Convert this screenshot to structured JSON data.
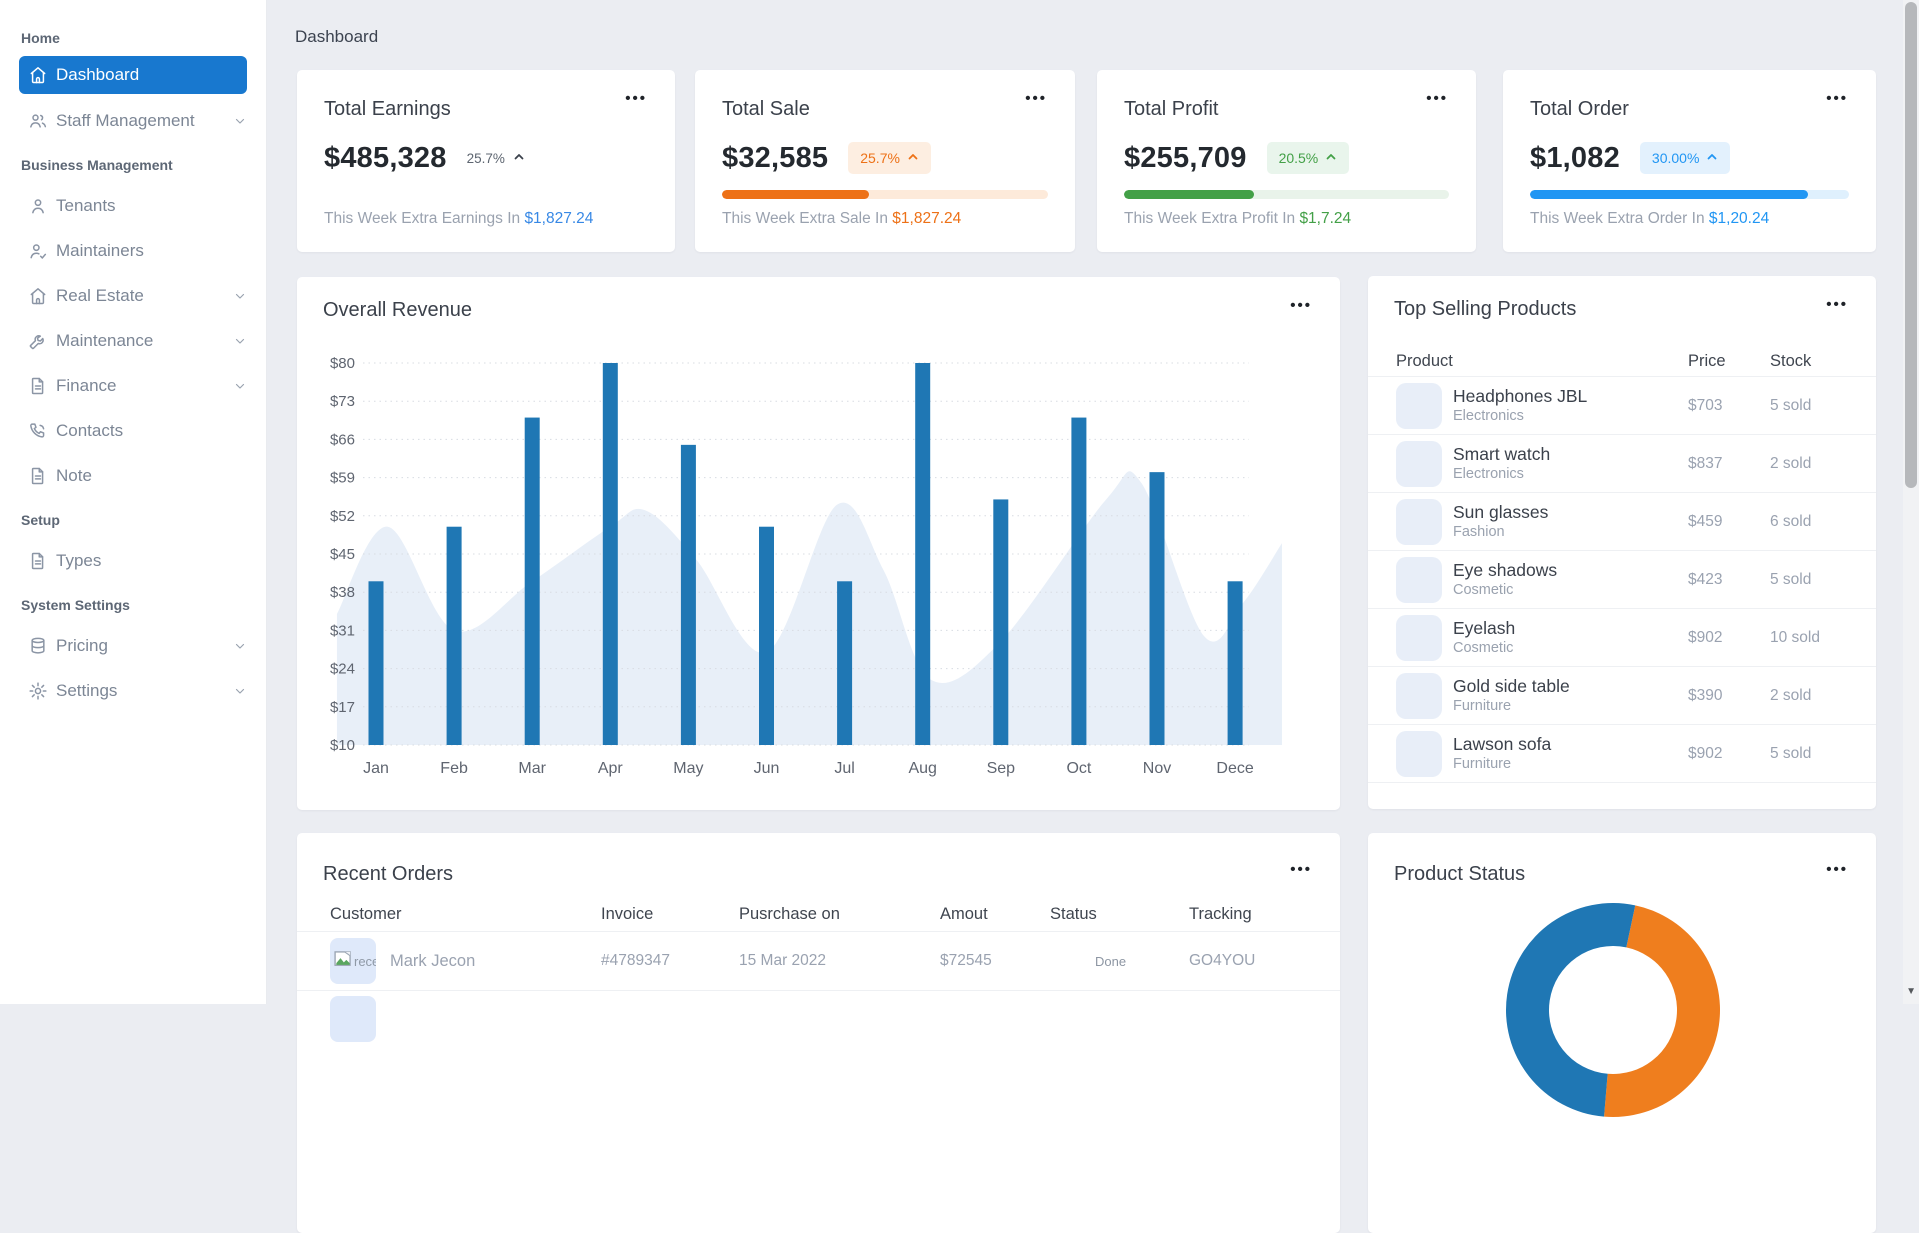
{
  "page": {
    "title": "Dashboard"
  },
  "ui": {
    "dots": "•••"
  },
  "sidebar": {
    "sections": [
      {
        "label": "Home",
        "items": [
          {
            "label": "Dashboard",
            "icon": "home-icon",
            "active": true
          },
          {
            "label": "Staff Management",
            "icon": "users-icon",
            "chevron": true
          }
        ]
      },
      {
        "label": "Business Management",
        "items": [
          {
            "label": "Tenants",
            "icon": "user-icon"
          },
          {
            "label": "Maintainers",
            "icon": "user-check-icon"
          },
          {
            "label": "Real Estate",
            "icon": "home-icon",
            "chevron": true
          },
          {
            "label": "Maintenance",
            "icon": "wrench-icon",
            "chevron": true
          },
          {
            "label": "Finance",
            "icon": "file-icon",
            "chevron": true
          },
          {
            "label": "Contacts",
            "icon": "phone-icon"
          },
          {
            "label": "Note",
            "icon": "file-icon"
          }
        ]
      },
      {
        "label": "Setup",
        "items": [
          {
            "label": "Types",
            "icon": "file-icon"
          }
        ]
      },
      {
        "label": "System Settings",
        "items": [
          {
            "label": "Pricing",
            "icon": "database-icon",
            "chevron": true
          },
          {
            "label": "Settings",
            "icon": "gear-icon",
            "chevron": true
          }
        ]
      }
    ]
  },
  "stat_cards": [
    {
      "title": "Total Earnings",
      "value": "$485,328",
      "percent": "25.7%",
      "style": "plain",
      "accent": "#3788e5",
      "note_prefix": "This Week Extra Earnings In ",
      "note_amount": "$1,827.24"
    },
    {
      "title": "Total Sale",
      "value": "$32,585",
      "percent": "25.7%",
      "style": "badge",
      "accent": "#ed7117",
      "badge_bg": "#fdeee1",
      "progress": 45,
      "track": "#fdeada",
      "note_prefix": "This Week Extra Sale In ",
      "note_amount": "$1,827.24"
    },
    {
      "title": "Total Profit",
      "value": "$255,709",
      "percent": "20.5%",
      "style": "badge",
      "accent": "#43a047",
      "badge_bg": "#e9f5ec",
      "progress": 40,
      "track": "#e9f3ea",
      "note_prefix": "This Week Extra Profit In ",
      "note_amount": "$1,7.24"
    },
    {
      "title": "Total Order",
      "value": "$1,082",
      "percent": "30.00%",
      "style": "badge",
      "accent": "#2196f3",
      "badge_bg": "#e3f1fd",
      "progress": 87,
      "track": "#dff0fd",
      "note_prefix": "This Week Extra Order In ",
      "note_amount": "$1,20.24"
    }
  ],
  "chart_data": [
    {
      "type": "bar",
      "title": "Overall Revenue",
      "categories": [
        "Jan",
        "Feb",
        "Mar",
        "Apr",
        "May",
        "Jun",
        "Jul",
        "Aug",
        "Sep",
        "Oct",
        "Nov",
        "Dece"
      ],
      "series": [
        {
          "name": "monthly-revenue",
          "kind": "bar",
          "color": "#1f77b4",
          "values": [
            40,
            50,
            70,
            80,
            65,
            50,
            40,
            80,
            55,
            70,
            60,
            40
          ]
        },
        {
          "name": "background-trend",
          "kind": "area",
          "color": "#e8eff8",
          "points": [
            [
              -0.5,
              34
            ],
            [
              0.15,
              50
            ],
            [
              1,
              31
            ],
            [
              2,
              40
            ],
            [
              3,
              50
            ],
            [
              3.45,
              53
            ],
            [
              4.1,
              44
            ],
            [
              5,
              27
            ],
            [
              5.9,
              54
            ],
            [
              6.5,
              42
            ],
            [
              7.1,
              22
            ],
            [
              8,
              29
            ],
            [
              9.35,
              55
            ],
            [
              9.8,
              58
            ],
            [
              10.6,
              30
            ],
            [
              11.1,
              36
            ],
            [
              11.6,
              47
            ]
          ]
        }
      ],
      "ytick_prefix": "$",
      "yticks": [
        10,
        17,
        24,
        31,
        38,
        45,
        52,
        59,
        66,
        73,
        80
      ],
      "ylim": [
        10,
        80
      ],
      "grid": "horizontal-dotted",
      "legend": "none"
    },
    {
      "type": "donut",
      "title": "Product Status",
      "start_angle_deg": 12,
      "segments": [
        {
          "name": "segment-orange",
          "color": "#ef7e1e",
          "percent": 48
        },
        {
          "name": "segment-blue",
          "color": "#1f77b4",
          "percent": 52
        }
      ]
    }
  ],
  "top_products": {
    "title": "Top Selling Products",
    "columns": [
      "Product",
      "Price",
      "Stock"
    ],
    "rows": [
      {
        "name": "Headphones JBL",
        "category": "Electronics",
        "price": "$703",
        "stock": "5 sold"
      },
      {
        "name": "Smart watch",
        "category": "Electronics",
        "price": "$837",
        "stock": "2 sold"
      },
      {
        "name": "Sun glasses",
        "category": "Fashion",
        "price": "$459",
        "stock": "6 sold"
      },
      {
        "name": "Eye shadows",
        "category": "Cosmetic",
        "price": "$423",
        "stock": "5 sold"
      },
      {
        "name": "Eyelash",
        "category": "Cosmetic",
        "price": "$902",
        "stock": "10 sold"
      },
      {
        "name": "Gold side table",
        "category": "Furniture",
        "price": "$390",
        "stock": "2 sold"
      },
      {
        "name": "Lawson sofa",
        "category": "Furniture",
        "price": "$902",
        "stock": "5 sold"
      }
    ]
  },
  "recent_orders": {
    "title": "Recent Orders",
    "columns": [
      "Customer",
      "Invoice",
      "Pusrchase on",
      "Amout",
      "Status",
      "Tracking"
    ],
    "rows": [
      {
        "avatar_alt": "rece",
        "customer": "Mark Jecon",
        "invoice": "#4789347",
        "purchase_on": "15 Mar 2022",
        "amount": "$72545",
        "status": "Done",
        "tracking": "GO4YOU"
      }
    ]
  }
}
